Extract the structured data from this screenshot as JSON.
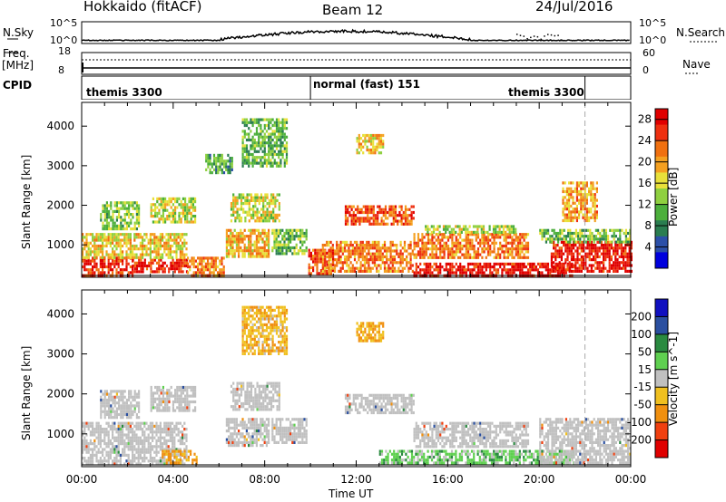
{
  "header": {
    "title": "Hokkaido (fitACF)",
    "beam": "Beam 12",
    "date": "24/Jul/2016"
  },
  "top_panels": {
    "nsky_label": "N.Sky",
    "nsearch_label": "N.Search",
    "nsky_ticks": [
      "10^5",
      "10^0"
    ],
    "nsky_right_ticks": [
      "10^5",
      "10^0"
    ],
    "freq_label": "Freq.",
    "freq_unit": "[MHz]",
    "freq_ticks": [
      "18",
      "8"
    ],
    "nave_label": "Nave",
    "nave_ticks": [
      "60",
      "0"
    ],
    "cpid_label": "CPID",
    "cpid_segments": [
      {
        "label": "themis 3300",
        "start_hour": 0,
        "end_hour": 10
      },
      {
        "label": "normal (fast) 151",
        "start_hour": 10,
        "end_hour": 22
      },
      {
        "label": "themis 3300",
        "start_hour": 22,
        "end_hour": 24
      }
    ]
  },
  "chart_data": [
    {
      "type": "heatmap",
      "title": "Power",
      "xlabel": "",
      "ylabel": "Slant Range [km]",
      "xlim": [
        0,
        24
      ],
      "ylim": [
        180,
        4600
      ],
      "yticks": [
        1000,
        2000,
        3000,
        4000
      ],
      "colorbar": {
        "label": "Power [dB]",
        "ticks": [
          4,
          8,
          12,
          16,
          20,
          24,
          28
        ],
        "range": [
          0,
          30
        ],
        "colors": [
          "#0000dd",
          "#2b4fa8",
          "#2a7d50",
          "#4caf3c",
          "#8fd040",
          "#e8e03a",
          "#f4a020",
          "#f07010",
          "#ee3010",
          "#e00000"
        ]
      },
      "regions": [
        {
          "t0": 0.0,
          "t1": 2.2,
          "r0": 250,
          "r1": 700,
          "value": 26
        },
        {
          "t0": 2.2,
          "t1": 4.6,
          "r0": 300,
          "r1": 650,
          "value": 27
        },
        {
          "t0": 0.0,
          "t1": 4.6,
          "r0": 700,
          "r1": 1300,
          "value": 17
        },
        {
          "t0": 0.8,
          "t1": 2.5,
          "r0": 1400,
          "r1": 2100,
          "value": 13
        },
        {
          "t0": 3.0,
          "t1": 5.0,
          "r0": 1600,
          "r1": 2200,
          "value": 15
        },
        {
          "t0": 4.6,
          "t1": 6.2,
          "r0": 250,
          "r1": 700,
          "value": 22
        },
        {
          "t0": 5.4,
          "t1": 6.6,
          "r0": 2800,
          "r1": 3300,
          "value": 10
        },
        {
          "t0": 6.3,
          "t1": 8.2,
          "r0": 700,
          "r1": 1400,
          "value": 19
        },
        {
          "t0": 6.5,
          "t1": 8.6,
          "r0": 1600,
          "r1": 2300,
          "value": 16
        },
        {
          "t0": 7.0,
          "t1": 9.0,
          "r0": 3000,
          "r1": 4200,
          "value": 11
        },
        {
          "t0": 8.3,
          "t1": 9.8,
          "r0": 800,
          "r1": 1400,
          "value": 12
        },
        {
          "t0": 9.9,
          "t1": 11.0,
          "r0": 250,
          "r1": 900,
          "value": 24
        },
        {
          "t0": 10.5,
          "t1": 14.5,
          "r0": 300,
          "r1": 1100,
          "value": 22
        },
        {
          "t0": 11.5,
          "t1": 14.5,
          "r0": 1500,
          "r1": 2000,
          "value": 24
        },
        {
          "t0": 12.0,
          "t1": 13.2,
          "r0": 3300,
          "r1": 3800,
          "value": 18
        },
        {
          "t0": 14.5,
          "t1": 19.5,
          "r0": 700,
          "r1": 1300,
          "value": 22
        },
        {
          "t0": 14.5,
          "t1": 21.5,
          "r0": 250,
          "r1": 550,
          "value": 28
        },
        {
          "t0": 15.0,
          "t1": 19.0,
          "r0": 1300,
          "r1": 1500,
          "value": 14
        },
        {
          "t0": 20.5,
          "t1": 24.0,
          "r0": 300,
          "r1": 1100,
          "value": 28
        },
        {
          "t0": 20.0,
          "t1": 24.0,
          "r0": 1100,
          "r1": 1400,
          "value": 12
        },
        {
          "t0": 21.0,
          "t1": 22.5,
          "r0": 1600,
          "r1": 2600,
          "value": 20
        }
      ]
    },
    {
      "type": "heatmap",
      "title": "Velocity",
      "xlabel": "Time UT",
      "ylabel": "Slant Range [km]",
      "xlim": [
        0,
        24
      ],
      "ylim": [
        180,
        4600
      ],
      "yticks": [
        1000,
        2000,
        3000,
        4000
      ],
      "xtick_labels": [
        "00:00",
        "04:00",
        "08:00",
        "12:00",
        "16:00",
        "20:00",
        "00:00"
      ],
      "colorbar": {
        "label": "Velocity [m s^-1]",
        "ticks": [
          200,
          100,
          50,
          15,
          -15,
          -50,
          -100,
          -200
        ],
        "range": [
          -250,
          250
        ],
        "ground_scatter_color": "#c0c0c0"
      },
      "regions": [
        {
          "t0": 0.0,
          "t1": 4.6,
          "r0": 250,
          "r1": 1300,
          "value": "gs"
        },
        {
          "t0": 0.8,
          "t1": 2.5,
          "r0": 1400,
          "r1": 2100,
          "value": "gs"
        },
        {
          "t0": 3.0,
          "t1": 5.0,
          "r0": 1600,
          "r1": 2200,
          "value": "gs"
        },
        {
          "t0": 3.5,
          "t1": 5.0,
          "r0": 300,
          "r1": 600,
          "value": -60
        },
        {
          "t0": 6.3,
          "t1": 8.2,
          "r0": 700,
          "r1": 1400,
          "value": "gs"
        },
        {
          "t0": 6.5,
          "t1": 8.6,
          "r0": 1600,
          "r1": 2300,
          "value": "gs"
        },
        {
          "t0": 7.0,
          "t1": 9.0,
          "r0": 3000,
          "r1": 4200,
          "value": -40
        },
        {
          "t0": 8.3,
          "t1": 9.8,
          "r0": 800,
          "r1": 1400,
          "value": "gs"
        },
        {
          "t0": 11.5,
          "t1": 14.5,
          "r0": 1500,
          "r1": 2000,
          "value": "gs"
        },
        {
          "t0": 12.0,
          "t1": 13.2,
          "r0": 3300,
          "r1": 3800,
          "value": -50
        },
        {
          "t0": 14.5,
          "t1": 19.5,
          "r0": 700,
          "r1": 1300,
          "value": "gs"
        },
        {
          "t0": 13.0,
          "t1": 21.5,
          "r0": 250,
          "r1": 600,
          "value": 30
        },
        {
          "t0": 20.0,
          "t1": 24.0,
          "r0": 300,
          "r1": 1400,
          "value": "gs"
        }
      ]
    }
  ]
}
